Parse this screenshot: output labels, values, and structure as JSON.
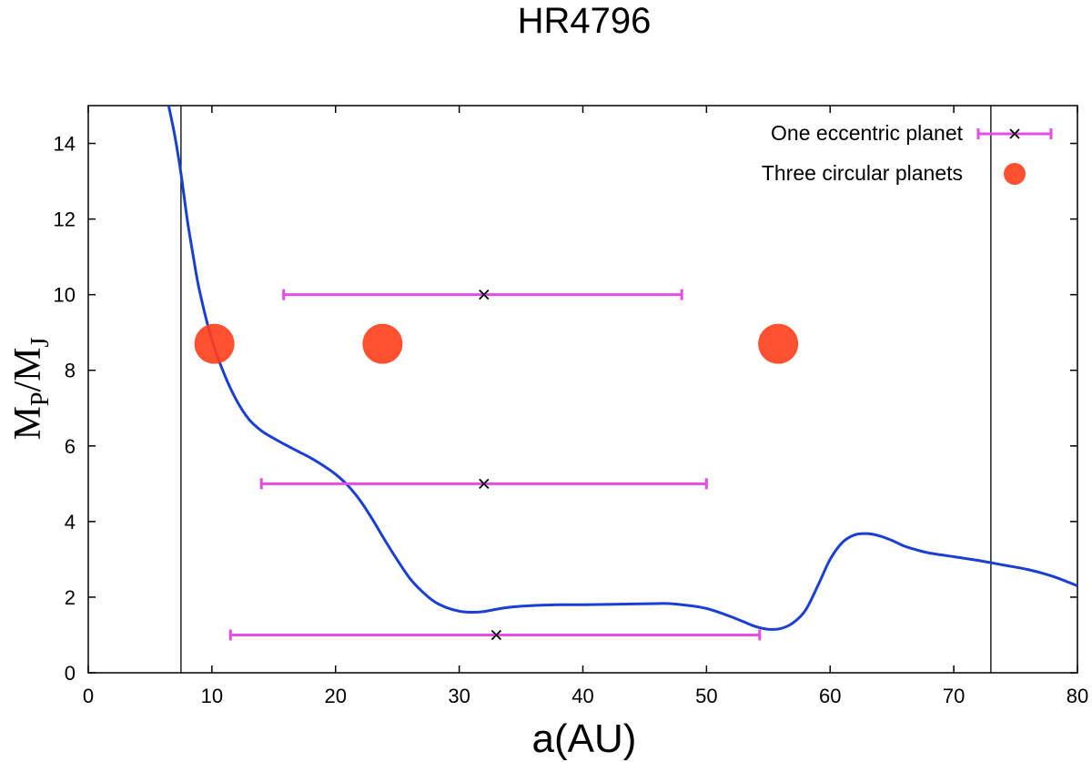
{
  "chart_data": {
    "type": "scatter",
    "title": "HR4796",
    "xlabel": "a(AU)",
    "ylabel": {
      "main": "M",
      "sub1": "P",
      "mid": "/M",
      "sub2": "J"
    },
    "xlim": [
      0,
      80
    ],
    "ylim": [
      0,
      15
    ],
    "xticks": [
      0,
      10,
      20,
      30,
      40,
      50,
      60,
      70,
      80
    ],
    "yticks": [
      0,
      2,
      4,
      6,
      8,
      10,
      12,
      14
    ],
    "grid": false,
    "legend_position": "top-right",
    "vertical_lines": [
      7.5,
      73
    ],
    "curve": {
      "color": "#1a3fd6",
      "x": [
        6.5,
        7,
        7.5,
        8,
        8.5,
        9,
        10,
        11,
        12,
        13,
        14,
        15,
        16,
        17,
        18,
        19,
        20,
        21,
        22,
        23,
        24,
        25,
        26,
        27,
        28,
        29,
        30,
        31,
        32,
        33,
        34,
        35,
        36,
        37,
        38,
        40,
        42,
        44,
        46,
        47,
        48,
        49,
        50,
        51,
        52,
        53,
        54,
        55,
        56,
        57,
        58,
        59,
        60,
        61,
        62,
        63,
        64,
        65,
        66,
        67,
        68,
        70,
        72,
        74,
        76,
        78,
        80
      ],
      "y": [
        15,
        14.2,
        13.2,
        12,
        11,
        10.1,
        8.8,
        7.9,
        7.2,
        6.7,
        6.4,
        6.2,
        6.02,
        5.85,
        5.68,
        5.48,
        5.25,
        4.95,
        4.55,
        4.05,
        3.5,
        2.98,
        2.5,
        2.15,
        1.88,
        1.72,
        1.63,
        1.6,
        1.62,
        1.68,
        1.73,
        1.76,
        1.78,
        1.79,
        1.8,
        1.8,
        1.81,
        1.82,
        1.83,
        1.83,
        1.8,
        1.76,
        1.7,
        1.6,
        1.48,
        1.35,
        1.22,
        1.15,
        1.17,
        1.32,
        1.65,
        2.3,
        3.0,
        3.45,
        3.65,
        3.68,
        3.62,
        3.5,
        3.35,
        3.25,
        3.17,
        3.07,
        2.97,
        2.85,
        2.73,
        2.55,
        2.3
      ]
    },
    "series": [
      {
        "name": "One eccentric planet",
        "kind": "errorbar",
        "color": "#e64ce6",
        "points": [
          {
            "x": 32,
            "y": 10,
            "xmin": 15.8,
            "xmax": 48
          },
          {
            "x": 32,
            "y": 5,
            "xmin": 14,
            "xmax": 50
          },
          {
            "x": 33,
            "y": 1,
            "xmin": 11.5,
            "xmax": 54.3
          }
        ]
      },
      {
        "name": "Three circular planets",
        "kind": "scatter",
        "color": "#ff3d1a",
        "points": [
          {
            "x": 10.2,
            "y": 8.7
          },
          {
            "x": 23.8,
            "y": 8.7
          },
          {
            "x": 55.8,
            "y": 8.7
          }
        ]
      }
    ]
  }
}
